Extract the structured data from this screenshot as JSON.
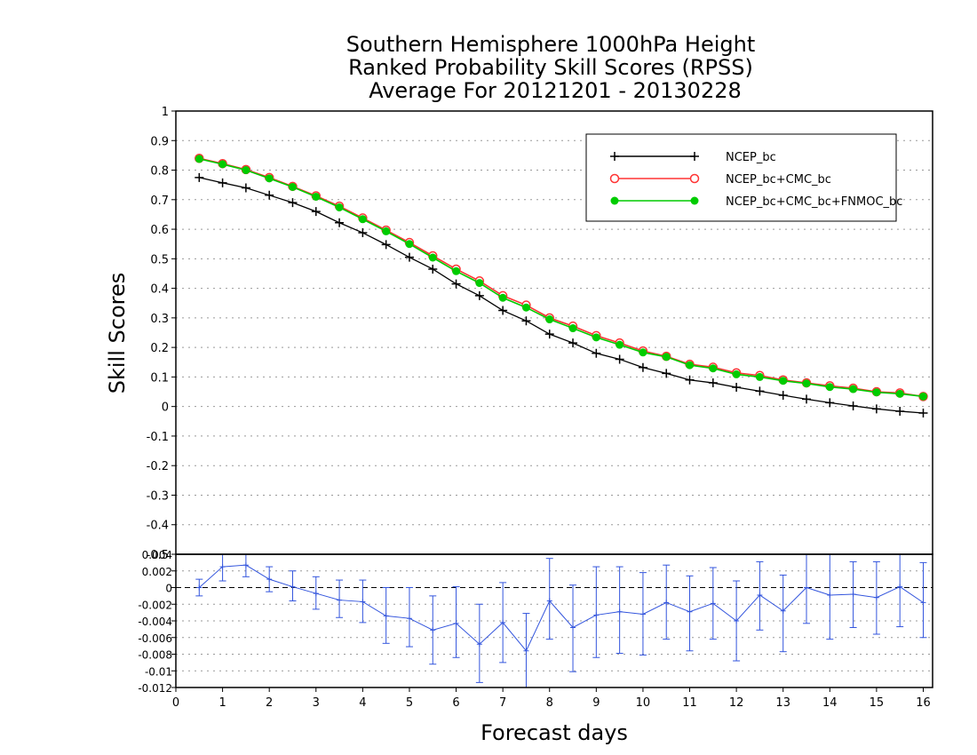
{
  "chart_data": [
    {
      "type": "line",
      "title": [
        "Southern Hemisphere 1000hPa Height",
        "Ranked Probability Skill Scores (RPSS)",
        "Average For 20121201 - 20130228"
      ],
      "xlabel": "Forecast days",
      "ylabel": "Skill Scores",
      "xlim": [
        0,
        16.2
      ],
      "ylim": [
        -0.5,
        1
      ],
      "x_ticks": [
        "0",
        "1",
        "2",
        "3",
        "4",
        "5",
        "6",
        "7",
        "8",
        "9",
        "10",
        "11",
        "12",
        "13",
        "14",
        "15",
        "16"
      ],
      "y_ticks": [
        "-0.5",
        "-0.4",
        "-0.3",
        "-0.2",
        "-0.1",
        "0",
        "0.1",
        "0.2",
        "0.3",
        "0.4",
        "0.5",
        "0.6",
        "0.7",
        "0.8",
        "0.9",
        "1"
      ],
      "grid": "horizontal dotted",
      "legend_position": "top-right",
      "x": [
        0.5,
        1,
        1.5,
        2,
        2.5,
        3,
        3.5,
        4,
        4.5,
        5,
        5.5,
        6,
        6.5,
        7,
        7.5,
        8,
        8.5,
        9,
        9.5,
        10,
        10.5,
        11,
        11.5,
        12,
        12.5,
        13,
        13.5,
        14,
        14.5,
        15,
        15.5,
        16
      ],
      "series": [
        {
          "name": "NCEP_bc",
          "color": "#000000",
          "marker": "plus",
          "values": [
            0.775,
            0.757,
            0.74,
            0.715,
            0.69,
            0.66,
            0.622,
            0.588,
            0.548,
            0.505,
            0.465,
            0.415,
            0.375,
            0.325,
            0.29,
            0.245,
            0.215,
            0.18,
            0.16,
            0.132,
            0.112,
            0.09,
            0.08,
            0.065,
            0.052,
            0.038,
            0.025,
            0.013,
            0.002,
            -0.008,
            -0.016,
            -0.022
          ]
        },
        {
          "name": "NCEP_bc+CMC_bc",
          "color": "#ff3333",
          "marker": "open-circle",
          "values": [
            0.84,
            0.822,
            0.802,
            0.775,
            0.745,
            0.713,
            0.678,
            0.638,
            0.597,
            0.555,
            0.51,
            0.465,
            0.425,
            0.375,
            0.343,
            0.3,
            0.272,
            0.24,
            0.215,
            0.188,
            0.17,
            0.143,
            0.133,
            0.114,
            0.105,
            0.09,
            0.08,
            0.07,
            0.062,
            0.05,
            0.046,
            0.034
          ]
        },
        {
          "name": "NCEP_bc+CMC_bc+FNMOC_bc",
          "color": "#00cc00",
          "marker": "filled-circle",
          "values": [
            0.838,
            0.82,
            0.8,
            0.772,
            0.743,
            0.71,
            0.674,
            0.634,
            0.593,
            0.55,
            0.504,
            0.458,
            0.418,
            0.368,
            0.335,
            0.295,
            0.265,
            0.234,
            0.209,
            0.183,
            0.168,
            0.14,
            0.129,
            0.109,
            0.1,
            0.087,
            0.078,
            0.066,
            0.059,
            0.048,
            0.043,
            0.034
          ]
        }
      ]
    },
    {
      "type": "line",
      "subtype": "errorbar",
      "xlim": [
        0,
        16.2
      ],
      "ylim": [
        -0.012,
        0.004
      ],
      "y_ticks": [
        "-0.012",
        "-0.01",
        "-0.008",
        "-0.006",
        "-0.004",
        "-0.002",
        "0",
        "0.002",
        "0.004"
      ],
      "grid": "horizontal dotted",
      "color": "#3355dd",
      "x": [
        0.5,
        1,
        1.5,
        2,
        2.5,
        3,
        3.5,
        4,
        4.5,
        5,
        5.5,
        6,
        6.5,
        7,
        7.5,
        8,
        8.5,
        9,
        9.5,
        10,
        10.5,
        11,
        11.5,
        12,
        12.5,
        13,
        13.5,
        14,
        14.5,
        15,
        15.5,
        16
      ],
      "values": [
        0,
        0.0025,
        0.0027,
        0.001,
        0.0001,
        -0.0007,
        -0.0015,
        -0.0017,
        -0.0034,
        -0.0037,
        -0.0051,
        -0.0043,
        -0.0068,
        -0.0042,
        -0.0076,
        -0.0016,
        -0.0048,
        -0.0033,
        -0.0029,
        -0.0032,
        -0.0018,
        -0.0029,
        -0.0019,
        -0.004,
        -0.0009,
        -0.0028,
        0,
        -0.0009,
        -0.0008,
        -0.0012,
        0.0001,
        -0.0018
      ],
      "upper": [
        0.001,
        0.004,
        0.004,
        0.0025,
        0.002,
        0.0013,
        0.0009,
        0.0009,
        0,
        0,
        -0.001,
        0.0001,
        -0.002,
        0.0006,
        -0.0031,
        0.0035,
        0.0003,
        0.0025,
        0.0025,
        0.0018,
        0.0027,
        0.0014,
        0.0024,
        0.0008,
        0.0031,
        0.0015,
        0.0043,
        0.0041,
        0.0031,
        0.0031,
        0.0046,
        0.003
      ],
      "lower": [
        -0.001,
        0.0008,
        0.0013,
        -0.0005,
        -0.0016,
        -0.0026,
        -0.0036,
        -0.0042,
        -0.0067,
        -0.0071,
        -0.0092,
        -0.0084,
        -0.0114,
        -0.009,
        -0.0121,
        -0.0062,
        -0.0101,
        -0.0084,
        -0.0079,
        -0.0081,
        -0.0062,
        -0.0076,
        -0.0062,
        -0.0088,
        -0.0051,
        -0.0077,
        -0.0043,
        -0.0062,
        -0.0048,
        -0.0056,
        -0.0047,
        -0.006
      ]
    }
  ]
}
